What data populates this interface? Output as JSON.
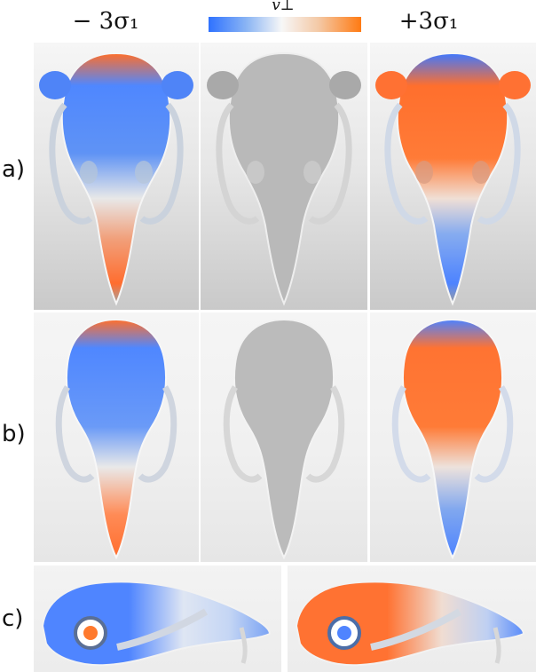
{
  "header": {
    "left_column": "− 3σ₁",
    "right_column": "+3σ₁",
    "colorbar_label": "v⊥"
  },
  "rows": [
    {
      "label": "a)"
    },
    {
      "label": "b)"
    },
    {
      "label": "c)"
    }
  ],
  "colors": {
    "negative": "#2f72ff",
    "neutral": "#f7f7f7",
    "positive": "#ff7a12",
    "mean_shape": "#bdbdbd"
  },
  "icons": {
    "colorbar": "blue-white-orange-gradient",
    "mean_skull": "gray-skull-render",
    "deviation_skull": "colored-skull-render"
  }
}
